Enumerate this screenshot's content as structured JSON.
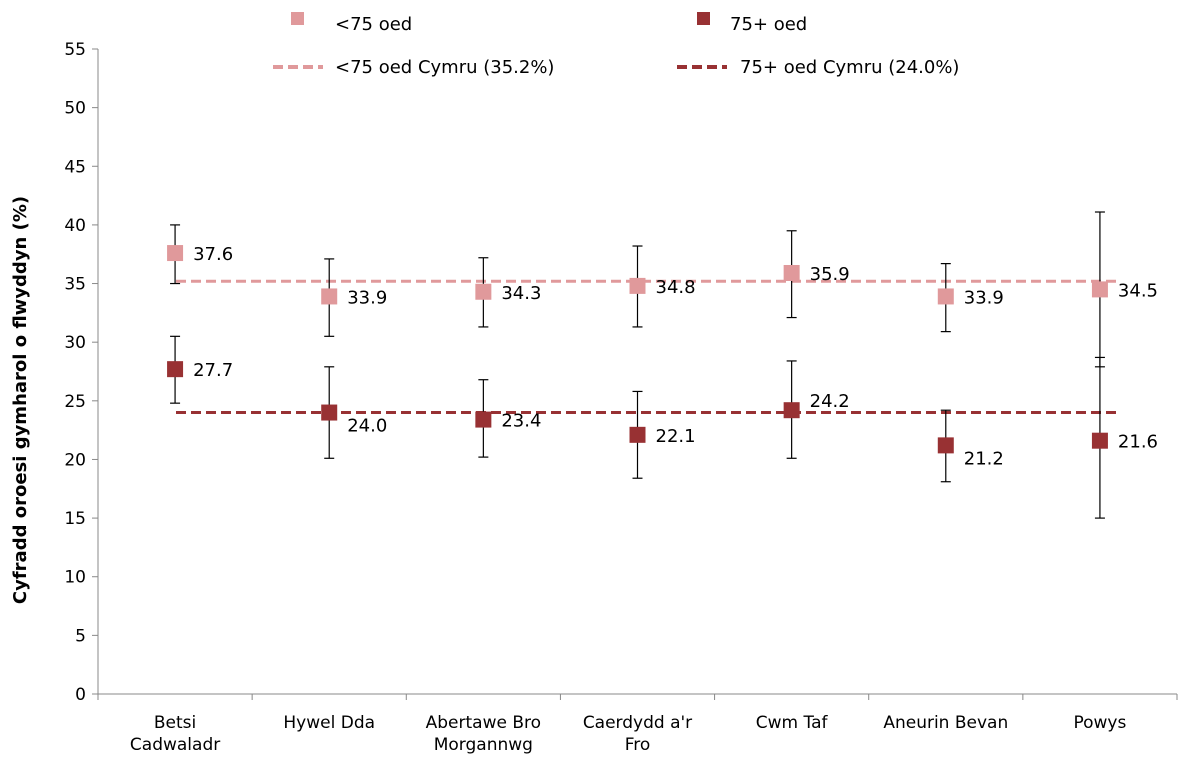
{
  "chart_data": {
    "type": "scatter",
    "ylabel": "Cyfradd oroesi gymharol o flwyddyn (%)",
    "xlabel": "",
    "ylim": [
      0,
      55
    ],
    "ytick_step": 5,
    "yticks": [
      "0",
      "5",
      "10",
      "15",
      "20",
      "25",
      "30",
      "35",
      "40",
      "45",
      "50",
      "55"
    ],
    "grid": false,
    "legend_position": "top",
    "categories": [
      [
        "Betsi",
        "Cadwaladr"
      ],
      [
        "Hywel Dda"
      ],
      [
        "Abertawe Bro",
        "Morgannwg"
      ],
      [
        "Caerdydd a'r",
        "Fro"
      ],
      [
        "Cwm Taf"
      ],
      [
        "Aneurin Bevan"
      ],
      [
        "Powys"
      ]
    ],
    "series": [
      {
        "name": "<75 oed",
        "color": "#e0999b",
        "values": [
          37.6,
          33.9,
          34.3,
          34.8,
          35.9,
          33.9,
          34.5
        ],
        "labels": [
          "37.6",
          "33.9",
          "34.3",
          "34.8",
          "35.9",
          "33.9",
          "34.5"
        ],
        "ci_low": [
          35.0,
          30.5,
          31.3,
          31.3,
          32.1,
          30.9,
          27.9
        ],
        "ci_high": [
          40.0,
          37.1,
          37.2,
          38.2,
          39.5,
          36.7,
          41.1
        ]
      },
      {
        "name": "75+ oed",
        "color": "#983133",
        "values": [
          27.7,
          24.0,
          23.4,
          22.1,
          24.2,
          21.2,
          21.6
        ],
        "labels": [
          "27.7",
          "24.0",
          "23.4",
          "22.1",
          "24.2",
          "21.2",
          "21.6"
        ],
        "ci_low": [
          24.8,
          20.1,
          20.2,
          18.4,
          20.1,
          18.1,
          15.0
        ],
        "ci_high": [
          30.5,
          27.9,
          26.8,
          25.8,
          28.4,
          24.2,
          28.7
        ]
      }
    ],
    "reference_lines": [
      {
        "name": "<75 oed Cymru (35.2%)",
        "value": 35.2,
        "color": "#e0999b"
      },
      {
        "name": "75+ oed Cymru (24.0%)",
        "value": 24.0,
        "color": "#983133"
      }
    ]
  }
}
